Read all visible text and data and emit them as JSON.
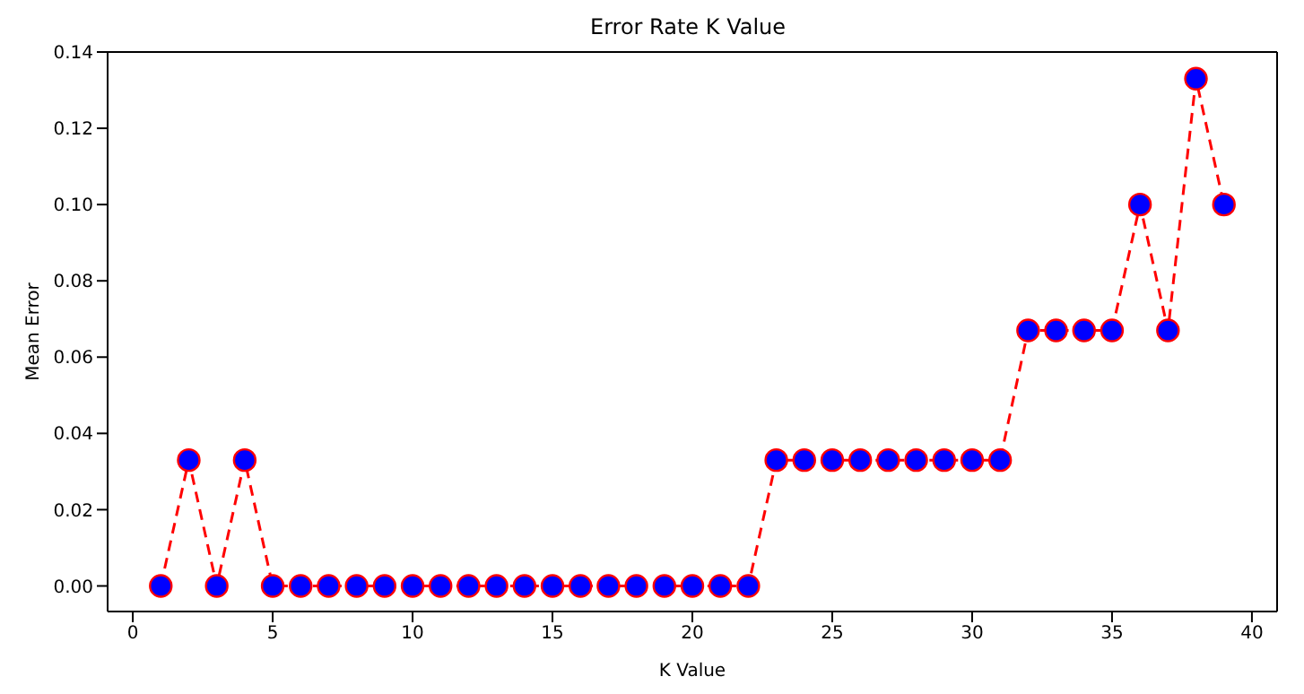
{
  "chart_data": {
    "type": "line",
    "title": "Error Rate K Value",
    "xlabel": "K Value",
    "ylabel": "Mean Error",
    "x": [
      1,
      2,
      3,
      4,
      5,
      6,
      7,
      8,
      9,
      10,
      11,
      12,
      13,
      14,
      15,
      16,
      17,
      18,
      19,
      20,
      21,
      22,
      23,
      24,
      25,
      26,
      27,
      28,
      29,
      30,
      31,
      32,
      33,
      34,
      35,
      36,
      37,
      38,
      39
    ],
    "series": [
      {
        "color": "#ff0000",
        "values": [
          0,
          0.033,
          0,
          0.033,
          0,
          0,
          0,
          0,
          0,
          0,
          0,
          0,
          0,
          0,
          0,
          0,
          0,
          0,
          0,
          0,
          0,
          0,
          0.033,
          0.033,
          0.033,
          0.033,
          0.033,
          0.033,
          0.033,
          0.033,
          0.033,
          0.067,
          0.067,
          0.067,
          0.067,
          0.1,
          0.067,
          0.133,
          0.1
        ]
      }
    ],
    "xlim": [
      -0.9,
      40.9
    ],
    "xticks": [
      0,
      5,
      10,
      15,
      20,
      25,
      30,
      35,
      40
    ],
    "ylim": [
      -0.0067,
      0.14
    ],
    "yticks": [
      {
        "value": 0,
        "label": "0.00"
      },
      {
        "value": 0.02,
        "label": "0.02"
      },
      {
        "value": 0.04,
        "label": "0.04"
      },
      {
        "value": 0.06,
        "label": "0.06"
      },
      {
        "value": 0.08,
        "label": "0.08"
      },
      {
        "value": 0.1,
        "label": "0.10"
      },
      {
        "value": 0.12,
        "label": "0.12"
      },
      {
        "value": 0.14,
        "label": "0.14"
      }
    ],
    "grid": false,
    "legend": false,
    "marker": "circle",
    "line_style": "dashed"
  }
}
